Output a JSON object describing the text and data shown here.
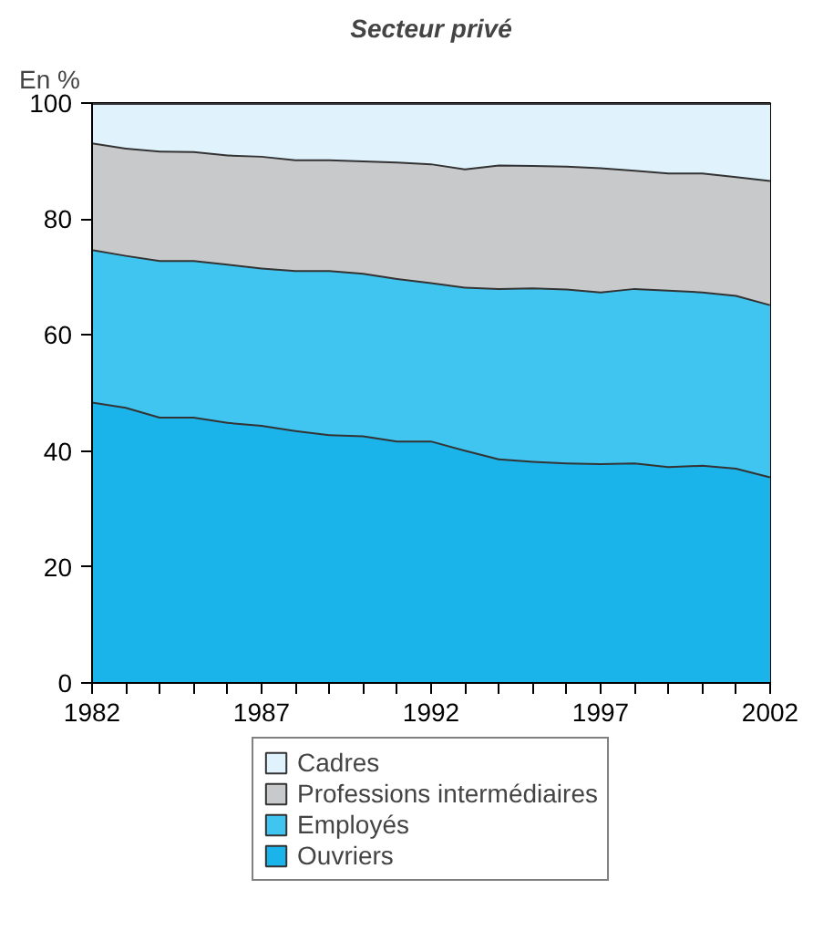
{
  "chart_data": {
    "type": "area",
    "stacked": true,
    "title": "Secteur privé",
    "ylabel": "En %",
    "x": [
      1982,
      1983,
      1984,
      1985,
      1986,
      1987,
      1988,
      1989,
      1990,
      1991,
      1992,
      1993,
      1994,
      1995,
      1996,
      1997,
      1998,
      1999,
      2000,
      2001,
      2002
    ],
    "series": [
      {
        "name": "Ouvriers",
        "color": "#1ab3ea",
        "values": [
          48.5,
          47.6,
          45.9,
          45.9,
          45.0,
          44.5,
          43.6,
          42.9,
          42.7,
          41.8,
          41.8,
          40.2,
          38.7,
          38.3,
          38.0,
          37.9,
          38.0,
          37.4,
          37.6,
          37.1,
          35.6
        ]
      },
      {
        "name": "Employés",
        "color": "#40c4f0",
        "values": [
          26.3,
          26.2,
          27.0,
          27.0,
          27.3,
          27.1,
          27.6,
          28.3,
          28.0,
          28.0,
          27.3,
          28.1,
          29.4,
          29.9,
          30.0,
          29.6,
          30.1,
          30.4,
          29.9,
          29.8,
          29.7
        ]
      },
      {
        "name": "Professions intermédiaires",
        "color": "#c8c9cb",
        "values": [
          18.4,
          18.5,
          18.9,
          18.8,
          18.8,
          19.3,
          19.1,
          19.1,
          19.4,
          20.1,
          20.5,
          20.4,
          21.3,
          21.1,
          21.2,
          21.4,
          20.4,
          20.2,
          20.5,
          20.5,
          21.4
        ]
      },
      {
        "name": "Cadres",
        "color": "#e0f2fb",
        "values": [
          6.8,
          7.7,
          8.2,
          8.3,
          8.9,
          9.1,
          9.7,
          9.7,
          9.9,
          10.1,
          10.4,
          11.3,
          10.6,
          10.7,
          10.8,
          11.1,
          11.5,
          12.0,
          12.0,
          12.6,
          13.3
        ]
      }
    ],
    "xlim": [
      1982,
      2002
    ],
    "xticks": [
      1982,
      {
        "value": 1983,
        "label": null
      },
      {
        "value": 1984,
        "label": null
      },
      {
        "value": 1985,
        "label": null
      },
      {
        "value": 1986,
        "label": null
      },
      1987,
      {
        "value": 1988,
        "label": null
      },
      {
        "value": 1989,
        "label": null
      },
      {
        "value": 1990,
        "label": null
      },
      {
        "value": 1991,
        "label": null
      },
      1992,
      {
        "value": 1993,
        "label": null
      },
      {
        "value": 1994,
        "label": null
      },
      {
        "value": 1995,
        "label": null
      },
      {
        "value": 1996,
        "label": null
      },
      1997,
      {
        "value": 1998,
        "label": null
      },
      {
        "value": 1999,
        "label": null
      },
      {
        "value": 2000,
        "label": null
      },
      {
        "value": 2001,
        "label": null
      },
      2002
    ],
    "ylim": [
      0,
      100
    ],
    "yticks": [
      0,
      20,
      40,
      60,
      80,
      100
    ],
    "grid": false,
    "legend": "bottom"
  }
}
